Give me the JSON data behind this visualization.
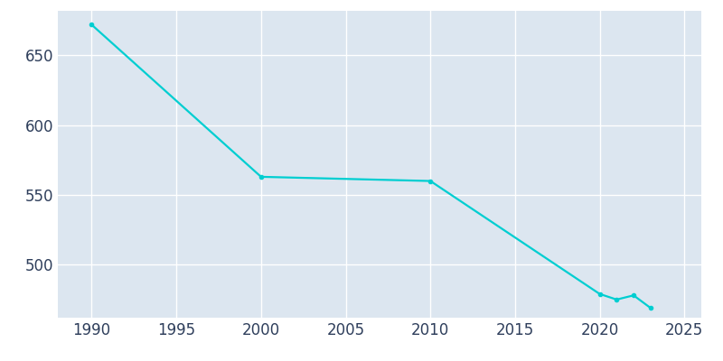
{
  "years": [
    1990,
    2000,
    2010,
    2020,
    2021,
    2022,
    2023
  ],
  "population": [
    672,
    563,
    560,
    479,
    475,
    478,
    469
  ],
  "line_color": "#00CED1",
  "marker_color": "#00CED1",
  "background_color": "#dce6f0",
  "outer_background": "#ffffff",
  "grid_color": "#ffffff",
  "tick_label_color": "#2f3f5c",
  "ylim": [
    462,
    682
  ],
  "xlim": [
    1988,
    2026
  ],
  "yticks": [
    500,
    550,
    600,
    650
  ],
  "xticks": [
    1990,
    1995,
    2000,
    2005,
    2010,
    2015,
    2020,
    2025
  ],
  "marker_size": 3,
  "line_width": 1.6,
  "tick_fontsize": 12
}
